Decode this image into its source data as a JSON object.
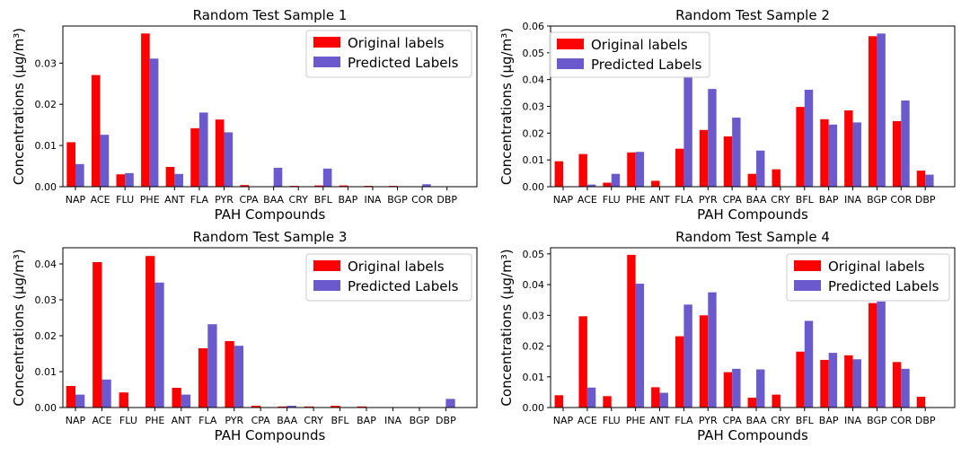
{
  "colors": {
    "original": "#ff0000",
    "predicted": "#6a5acd"
  },
  "chart_data": [
    {
      "type": "bar",
      "title": "Random Test Sample 1",
      "xlabel": "PAH Compounds",
      "ylabel": "Concentrations (μg/m³)",
      "ylim": [
        0,
        0.039
      ],
      "yticks": [
        0.0,
        0.01,
        0.02,
        0.03
      ],
      "ytick_labels": [
        "0.00",
        "0.01",
        "0.02",
        "0.03"
      ],
      "legend_position": "top-right",
      "categories": [
        "NAP",
        "ACE",
        "FLU",
        "PHE",
        "ANT",
        "FLA",
        "PYR",
        "CPA",
        "BAA",
        "CRY",
        "BFL",
        "BAP",
        "INA",
        "BGP",
        "COR",
        "DBP"
      ],
      "series": [
        {
          "name": "Original labels",
          "color": "#ff0000",
          "values": [
            0.0108,
            0.0271,
            0.003,
            0.0372,
            0.0048,
            0.0142,
            0.0163,
            0.0004,
            0,
            0.0002,
            0.0003,
            0.0003,
            0.0002,
            0.0002,
            0,
            0
          ]
        },
        {
          "name": "Predicted Labels",
          "color": "#6a5acd",
          "values": [
            0.0055,
            0.0126,
            0.0033,
            0.0311,
            0.0031,
            0.018,
            0.0132,
            0,
            0.0046,
            0,
            0.0044,
            0,
            0,
            0,
            0.0006,
            0
          ]
        }
      ]
    },
    {
      "type": "bar",
      "title": "Random Test Sample 2",
      "xlabel": "PAH Compounds",
      "ylabel": "Concentrations (μg/m³)",
      "ylim": [
        0,
        0.06
      ],
      "yticks": [
        0.0,
        0.01,
        0.02,
        0.03,
        0.04,
        0.05,
        0.06
      ],
      "ytick_labels": [
        "0.00",
        "0.01",
        "0.02",
        "0.03",
        "0.04",
        "0.05",
        "0.06"
      ],
      "legend_position": "top-left",
      "categories": [
        "NAP",
        "ACE",
        "FLU",
        "PHE",
        "ANT",
        "FLA",
        "PYR",
        "CPA",
        "BAA",
        "CRY",
        "BFL",
        "BAP",
        "INA",
        "BGP",
        "COR",
        "DBP"
      ],
      "series": [
        {
          "name": "Original labels",
          "color": "#ff0000",
          "values": [
            0.0095,
            0.0122,
            0.0015,
            0.0128,
            0.0022,
            0.0142,
            0.0212,
            0.0188,
            0.0048,
            0.0065,
            0.0298,
            0.0252,
            0.0285,
            0.0562,
            0.0245,
            0.006
          ]
        },
        {
          "name": "Predicted Labels",
          "color": "#6a5acd",
          "values": [
            0,
            0.0008,
            0.0048,
            0.013,
            0,
            0.0412,
            0.0365,
            0.0258,
            0.0135,
            0,
            0.0362,
            0.0232,
            0.024,
            0.0572,
            0.0322,
            0.0045
          ]
        }
      ]
    },
    {
      "type": "bar",
      "title": "Random Test Sample 3",
      "xlabel": "PAH Compounds",
      "ylabel": "Concentrations (μg/m³)",
      "ylim": [
        0,
        0.0445
      ],
      "yticks": [
        0.0,
        0.01,
        0.02,
        0.03,
        0.04
      ],
      "ytick_labels": [
        "0.00",
        "0.01",
        "0.02",
        "0.03",
        "0.04"
      ],
      "legend_position": "top-right",
      "categories": [
        "NAP",
        "ACE",
        "FLU",
        "PHE",
        "ANT",
        "FLA",
        "PYR",
        "CPA",
        "BAA",
        "CRY",
        "BFL",
        "BAP",
        "INA",
        "BGP",
        "DBP"
      ],
      "series": [
        {
          "name": "Original labels",
          "color": "#ff0000",
          "values": [
            0.006,
            0.0405,
            0.0042,
            0.0422,
            0.0055,
            0.0165,
            0.0185,
            0.0005,
            0.0003,
            0.0003,
            0.0005,
            0.0003,
            0,
            0,
            0
          ]
        },
        {
          "name": "Predicted Labels",
          "color": "#6a5acd",
          "values": [
            0.0036,
            0.0078,
            0,
            0.0348,
            0.0036,
            0.0232,
            0.0172,
            0,
            0.0005,
            0,
            0,
            0,
            0,
            0,
            0.0024
          ]
        }
      ]
    },
    {
      "type": "bar",
      "title": "Random Test Sample 4",
      "xlabel": "PAH Compounds",
      "ylabel": "Concentrations (μg/m³)",
      "ylim": [
        0,
        0.052
      ],
      "yticks": [
        0.0,
        0.01,
        0.02,
        0.03,
        0.04,
        0.05
      ],
      "ytick_labels": [
        "0.00",
        "0.01",
        "0.02",
        "0.03",
        "0.04",
        "0.05"
      ],
      "legend_position": "top-right",
      "categories": [
        "NAP",
        "ACE",
        "FLU",
        "PHE",
        "ANT",
        "FLA",
        "PYR",
        "CPA",
        "BAA",
        "CRY",
        "BFL",
        "BAP",
        "INA",
        "BGP",
        "COR",
        "DBP"
      ],
      "series": [
        {
          "name": "Original labels",
          "color": "#ff0000",
          "values": [
            0.004,
            0.0297,
            0.0037,
            0.0497,
            0.0066,
            0.0232,
            0.03,
            0.0115,
            0.0032,
            0.0042,
            0.0182,
            0.0155,
            0.017,
            0.034,
            0.0148,
            0.0035
          ]
        },
        {
          "name": "Predicted Labels",
          "color": "#6a5acd",
          "values": [
            0,
            0.0065,
            0,
            0.0403,
            0.0048,
            0.0335,
            0.0375,
            0.0126,
            0.0124,
            0,
            0.0282,
            0.0178,
            0.0157,
            0.0345,
            0.0126,
            0
          ]
        }
      ]
    }
  ]
}
